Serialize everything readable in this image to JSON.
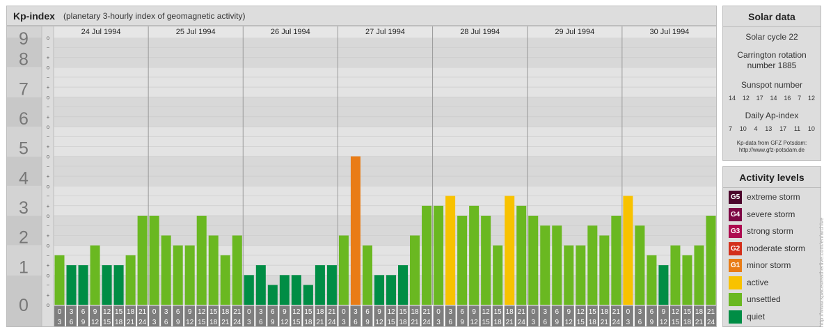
{
  "header": {
    "title": "Kp-index",
    "subtitle": "(planetary 3-hourly index of geomagnetic activity)"
  },
  "chart_data": {
    "type": "bar",
    "y_labels": [
      "0",
      "1",
      "2",
      "3",
      "4",
      "5",
      "6",
      "7",
      "8",
      "9"
    ],
    "ylim": [
      0,
      9
    ],
    "sub_ticks": [
      "o",
      "+",
      "−",
      "o",
      "+",
      "−",
      "o",
      "+",
      "−",
      "o",
      "+",
      "−",
      "o",
      "+",
      "−",
      "o",
      "+",
      "−",
      "o",
      "+",
      "−",
      "o",
      "+",
      "−",
      "o",
      "+",
      "−",
      "o"
    ],
    "days": [
      "24 Jul 1994",
      "25 Jul 1994",
      "26 Jul 1994",
      "27 Jul 1994",
      "28 Jul 1994",
      "29 Jul 1994",
      "30 Jul 1994"
    ],
    "hour_start": [
      "0",
      "3",
      "6",
      "9",
      "12",
      "15",
      "18",
      "21"
    ],
    "hour_end": [
      "3",
      "6",
      "9",
      "12",
      "15",
      "18",
      "21",
      "24"
    ],
    "values": [
      [
        1.667,
        1.333,
        1.333,
        2.0,
        1.333,
        1.333,
        1.667,
        3.0
      ],
      [
        3.0,
        2.333,
        2.0,
        2.0,
        3.0,
        2.333,
        1.667,
        2.333
      ],
      [
        1.0,
        1.333,
        0.667,
        1.0,
        1.0,
        0.667,
        1.333,
        1.333
      ],
      [
        2.333,
        5.0,
        2.0,
        1.0,
        1.0,
        1.333,
        2.333,
        3.333
      ],
      [
        3.333,
        3.667,
        3.0,
        3.333,
        3.0,
        2.0,
        3.667,
        3.333
      ],
      [
        3.0,
        2.667,
        2.667,
        2.0,
        2.0,
        2.667,
        2.333,
        3.0
      ],
      [
        3.667,
        2.667,
        1.667,
        1.333,
        2.0,
        1.667,
        2.0,
        3.0
      ]
    ],
    "colors": {
      "quiet": "#008d45",
      "unsettled": "#6ab821",
      "active": "#f8c200",
      "minor": "#e97c16",
      "moderate": "#d32f1b",
      "strong": "#ad0a4f",
      "severe": "#7d0744",
      "extreme": "#4b052b"
    }
  },
  "solar": {
    "title": "Solar data",
    "cycle": "Solar cycle 22",
    "rotation_1": "Carrington rotation",
    "rotation_2": "number 1885",
    "sunspot_title": "Sunspot number",
    "sunspots": [
      "14",
      "12",
      "17",
      "14",
      "16",
      "7",
      "12"
    ],
    "ap_title": "Daily Ap-index",
    "ap": [
      "7",
      "10",
      "4",
      "13",
      "17",
      "11",
      "10"
    ],
    "credit_1": "Kp-data from GFZ Potsdam:",
    "credit_2": "http://www.gfz-potsdam.de"
  },
  "activity": {
    "title": "Activity levels",
    "levels": [
      {
        "code": "G5",
        "label": "extreme storm",
        "color": "#4b052b"
      },
      {
        "code": "G4",
        "label": "severe storm",
        "color": "#7d0744"
      },
      {
        "code": "G3",
        "label": "strong storm",
        "color": "#ad0a4f"
      },
      {
        "code": "G2",
        "label": "moderate storm",
        "color": "#d32f1b"
      },
      {
        "code": "G1",
        "label": "minor storm",
        "color": "#e97c16"
      },
      {
        "code": "",
        "label": "active",
        "color": "#f8c200"
      },
      {
        "code": "",
        "label": "unsettled",
        "color": "#6ab821"
      },
      {
        "code": "",
        "label": "quiet",
        "color": "#008d45"
      }
    ]
  },
  "archive_text": "http://www.spaceweatherlive.com/en/archive"
}
